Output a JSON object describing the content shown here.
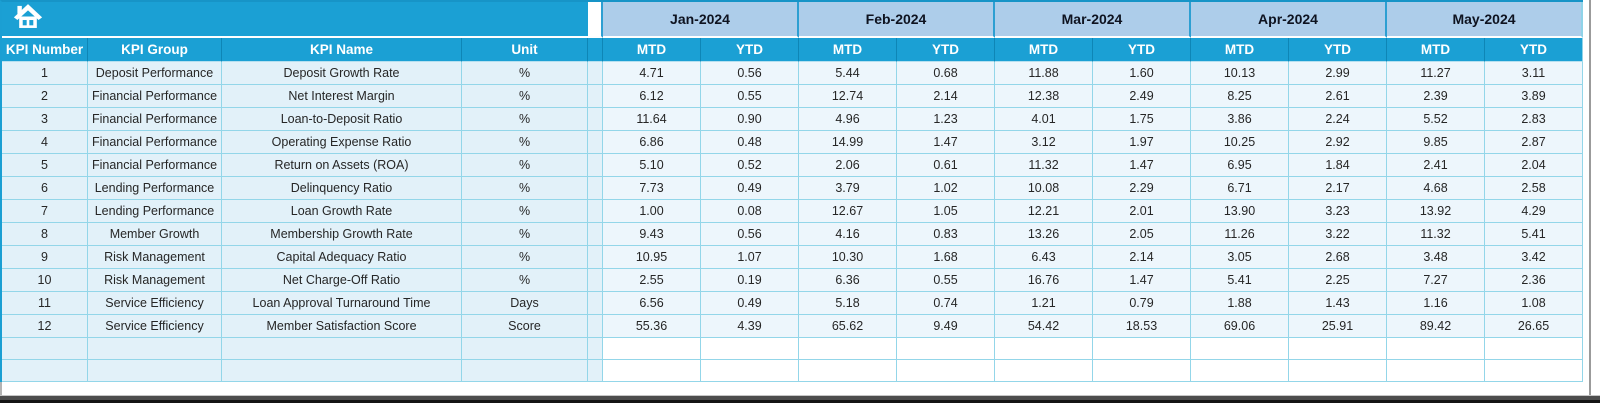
{
  "table": {
    "icons": {
      "home": "home-icon"
    },
    "left_headers": [
      "KPI Number",
      "KPI Group",
      "KPI Name",
      "Unit"
    ],
    "months": [
      "Jan-2024",
      "Feb-2024",
      "Mar-2024",
      "Apr-2024",
      "May-2024"
    ],
    "sub_headers": [
      "MTD",
      "YTD"
    ],
    "rows": [
      {
        "num": "1",
        "group": "Deposit Performance",
        "name": "Deposit Growth Rate",
        "unit": "%",
        "values": [
          "4.71",
          "0.56",
          "5.44",
          "0.68",
          "11.88",
          "1.60",
          "10.13",
          "2.99",
          "11.27",
          "3.11"
        ]
      },
      {
        "num": "2",
        "group": "Financial Performance",
        "name": "Net Interest Margin",
        "unit": "%",
        "values": [
          "6.12",
          "0.55",
          "12.74",
          "2.14",
          "12.38",
          "2.49",
          "8.25",
          "2.61",
          "2.39",
          "3.89"
        ]
      },
      {
        "num": "3",
        "group": "Financial Performance",
        "name": "Loan-to-Deposit Ratio",
        "unit": "%",
        "values": [
          "11.64",
          "0.90",
          "4.96",
          "1.23",
          "4.01",
          "1.75",
          "3.86",
          "2.24",
          "5.52",
          "2.83"
        ]
      },
      {
        "num": "4",
        "group": "Financial Performance",
        "name": "Operating Expense Ratio",
        "unit": "%",
        "values": [
          "6.86",
          "0.48",
          "14.99",
          "1.47",
          "3.12",
          "1.97",
          "10.25",
          "2.92",
          "9.85",
          "2.87"
        ]
      },
      {
        "num": "5",
        "group": "Financial Performance",
        "name": "Return on Assets (ROA)",
        "unit": "%",
        "values": [
          "5.10",
          "0.52",
          "2.06",
          "0.61",
          "11.32",
          "1.47",
          "6.95",
          "1.84",
          "2.41",
          "2.04"
        ]
      },
      {
        "num": "6",
        "group": "Lending Performance",
        "name": "Delinquency Ratio",
        "unit": "%",
        "values": [
          "7.73",
          "0.49",
          "3.79",
          "1.02",
          "10.08",
          "2.29",
          "6.71",
          "2.17",
          "4.68",
          "2.58"
        ]
      },
      {
        "num": "7",
        "group": "Lending Performance",
        "name": "Loan Growth Rate",
        "unit": "%",
        "values": [
          "1.00",
          "0.08",
          "12.67",
          "1.05",
          "12.21",
          "2.01",
          "13.90",
          "3.23",
          "13.92",
          "4.29"
        ]
      },
      {
        "num": "8",
        "group": "Member Growth",
        "name": "Membership Growth Rate",
        "unit": "%",
        "values": [
          "9.43",
          "0.56",
          "4.16",
          "0.83",
          "13.26",
          "2.05",
          "11.26",
          "3.22",
          "11.32",
          "5.41"
        ]
      },
      {
        "num": "9",
        "group": "Risk Management",
        "name": "Capital Adequacy Ratio",
        "unit": "%",
        "values": [
          "10.95",
          "1.07",
          "10.30",
          "1.68",
          "6.43",
          "2.14",
          "3.05",
          "2.68",
          "3.48",
          "3.42"
        ]
      },
      {
        "num": "10",
        "group": "Risk Management",
        "name": "Net Charge-Off Ratio",
        "unit": "%",
        "values": [
          "2.55",
          "0.19",
          "6.36",
          "0.55",
          "16.76",
          "1.47",
          "5.41",
          "2.25",
          "7.27",
          "2.36"
        ]
      },
      {
        "num": "11",
        "group": "Service Efficiency",
        "name": "Loan Approval Turnaround Time",
        "unit": "Days",
        "values": [
          "6.56",
          "0.49",
          "5.18",
          "0.74",
          "1.21",
          "0.79",
          "1.88",
          "1.43",
          "1.16",
          "1.08"
        ]
      },
      {
        "num": "12",
        "group": "Service Efficiency",
        "name": "Member Satisfaction Score",
        "unit": "Score",
        "values": [
          "55.36",
          "4.39",
          "65.62",
          "9.49",
          "54.42",
          "18.53",
          "69.06",
          "25.91",
          "89.42",
          "26.65"
        ]
      }
    ],
    "empty_rows": 2
  },
  "colors": {
    "accent_teal": "#1ba0d4",
    "month_header_blue": "#adcdea",
    "row_blue": "#e2f1f9",
    "grid_cyan": "#93d6e9"
  }
}
